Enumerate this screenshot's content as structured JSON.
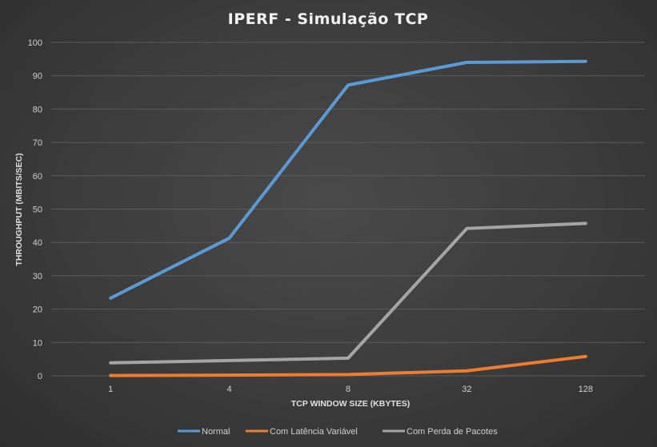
{
  "chart_data": {
    "type": "line",
    "title": "IPERF  - Simulação  TCP",
    "xlabel": "TCP WINDOW SIZE (KBYTES)",
    "ylabel": "THROUGHPUT (MBITS/SEC)",
    "categories": [
      "1",
      "4",
      "8",
      "32",
      "128"
    ],
    "ylim": [
      0,
      100
    ],
    "yticks": [
      0,
      10,
      20,
      30,
      40,
      50,
      60,
      70,
      80,
      90,
      100
    ],
    "grid": true,
    "legend_position": "bottom",
    "series": [
      {
        "name": "Normal",
        "color": "#5b9bd5",
        "values": [
          23.3,
          41.3,
          87.2,
          94.0,
          94.3
        ]
      },
      {
        "name": "Com Latência Variável",
        "color": "#ed7d31",
        "values": [
          0.1,
          0.2,
          0.4,
          1.5,
          5.8
        ]
      },
      {
        "name": "Com Perda de Pacotes",
        "color": "#a5a5a5",
        "values": [
          3.9,
          4.6,
          5.3,
          44.2,
          45.7
        ]
      }
    ]
  }
}
